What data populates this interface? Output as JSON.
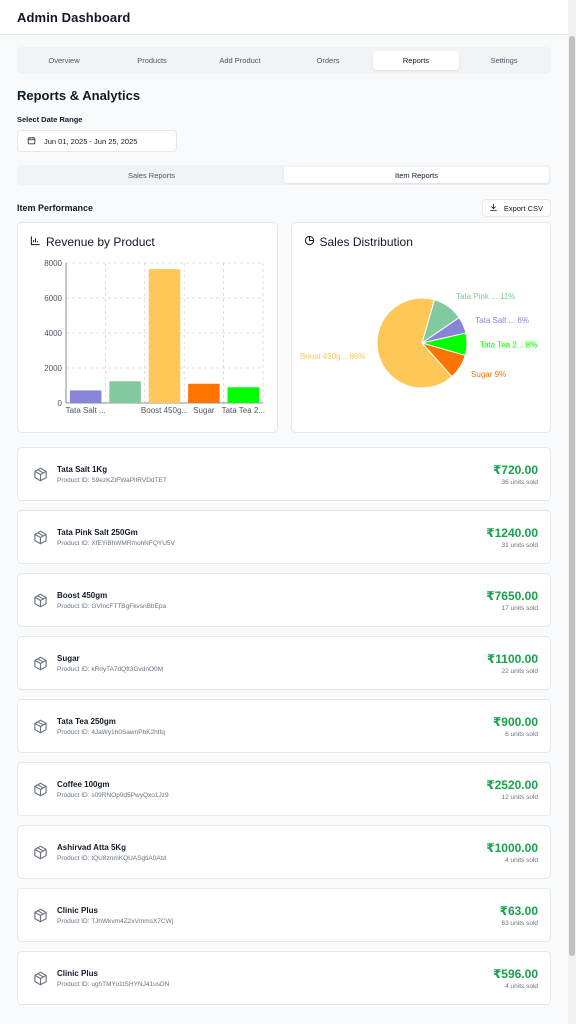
{
  "header": {
    "title": "Admin Dashboard"
  },
  "nav": {
    "tabs": [
      {
        "label": "Overview",
        "active": false
      },
      {
        "label": "Products",
        "active": false
      },
      {
        "label": "Add Product",
        "active": false
      },
      {
        "label": "Orders",
        "active": false
      },
      {
        "label": "Reports",
        "active": true
      },
      {
        "label": "Settings",
        "active": false
      }
    ]
  },
  "reports": {
    "title": "Reports & Analytics",
    "date_label": "Select Date Range",
    "date_range": "Jun 01, 2025 - Jun 25, 2025",
    "subtabs": [
      {
        "label": "Sales Reports",
        "active": false
      },
      {
        "label": "Item Reports",
        "active": true
      }
    ],
    "performance_label": "Item Performance",
    "export_label": "Export CSV"
  },
  "icons": {
    "calendar": "calendar-icon",
    "download": "download-icon",
    "bar_chart": "bar-chart-icon",
    "pie_chart": "pie-chart-icon",
    "package": "package-icon"
  },
  "chart_data": [
    {
      "type": "bar",
      "title": "Revenue by Product",
      "categories": [
        "Tata Salt 1Kg",
        "Tata Pink Salt 250Gm",
        "Boost 450gm",
        "Sugar",
        "Tata Tea 250gm"
      ],
      "tick_labels": [
        "Tata Salt ...",
        "",
        "Boost 450g...",
        "Sugar",
        "Tata Tea 2..."
      ],
      "values": [
        720,
        1240,
        7650,
        1100,
        900
      ],
      "colors": [
        "#8884d8",
        "#82ca9d",
        "#ffc658",
        "#ff7300",
        "#00ff00"
      ],
      "yticks": [
        0,
        2000,
        4000,
        6000,
        8000
      ],
      "ylim": [
        0,
        8000
      ],
      "grid": true
    },
    {
      "type": "pie",
      "title": "Sales Distribution",
      "slices": [
        {
          "label": "Tata Pink ... 11%",
          "value": 11,
          "color": "#82ca9d"
        },
        {
          "label": "Tata Salt ... 6%",
          "value": 6,
          "color": "#8884d8"
        },
        {
          "label": "Tata Tea 2... 8%",
          "value": 8,
          "color": "#00ff00"
        },
        {
          "label": "Sugar 9%",
          "value": 9,
          "color": "#ff7300"
        },
        {
          "label": "Boost 450g... 66%",
          "value": 66,
          "color": "#ffc658"
        }
      ]
    }
  ],
  "items": [
    {
      "name": "Tata Salt 1Kg",
      "product_id": "Product ID: S9ezKZIFWaPlIRVDdTET",
      "price": "₹720.00",
      "units": "36 units sold"
    },
    {
      "name": "Tata Pink Salt 250Gm",
      "product_id": "Product ID: XfEYiBhWMRmohNFQYU5V",
      "price": "₹1240.00",
      "units": "31 units sold"
    },
    {
      "name": "Boost 450gm",
      "product_id": "Product ID: GVIncFTTBgFkvsnBbEpa",
      "price": "₹7650.00",
      "units": "17 units sold"
    },
    {
      "name": "Sugar",
      "product_id": "Product ID: kRrlyTA7dQft3GvdnO0M",
      "price": "₹1100.00",
      "units": "22 units sold"
    },
    {
      "name": "Tata Tea 250gm",
      "product_id": "Product ID: 4JaWy1h0SawnPbK2htfq",
      "price": "₹900.00",
      "units": "6 units sold"
    },
    {
      "name": "Coffee 100gm",
      "product_id": "Product ID: s09RNOp9d5PwyQxo1Jz9",
      "price": "₹2520.00",
      "units": "12 units sold"
    },
    {
      "name": "Ashirvad Atta 5Kg",
      "product_id": "Product ID: tQU8znmKQUASgtiA0Atd",
      "price": "₹1000.00",
      "units": "4 units sold"
    },
    {
      "name": "Clinic Plus",
      "product_id": "Product ID: TJhWkvm4Z2xVmmsX7CWj",
      "price": "₹63.00",
      "units": "63 units sold"
    },
    {
      "name": "Clinic Plus",
      "product_id": "Product ID: ughTMYu1tSHYNJ41usDN",
      "price": "₹596.00",
      "units": "4 units sold"
    }
  ]
}
